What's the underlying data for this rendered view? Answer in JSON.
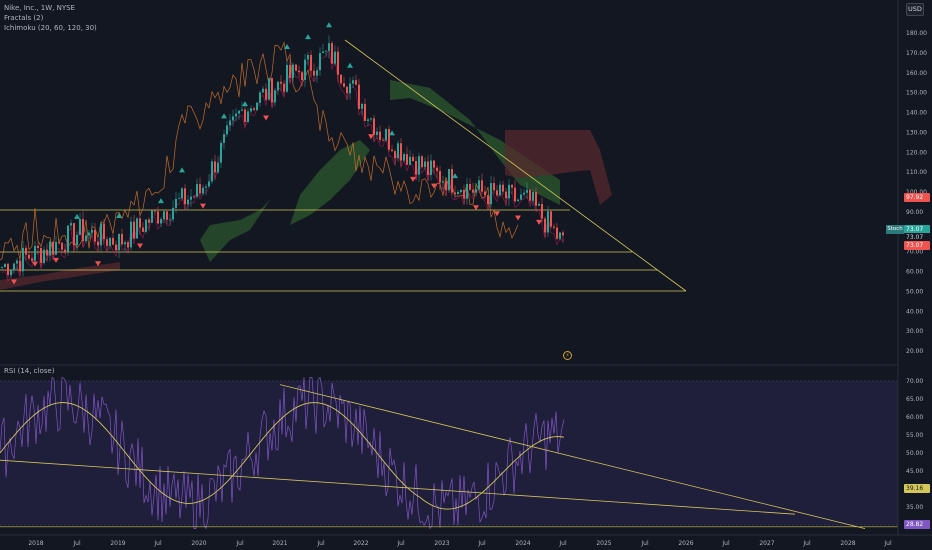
{
  "legend": {
    "symbol": "Nike, Inc., 1W, NYSE",
    "fractals": "Fractals (2)",
    "ichimoku": "Ichimoku (20, 60, 120, 30)"
  },
  "rsi_legend": "RSI (14, close)",
  "currency": "USD",
  "price_axis_ticks": [
    "180.00",
    "170.00",
    "160.00",
    "150.00",
    "140.00",
    "130.00",
    "120.00",
    "110.00",
    "100.00",
    "90.00",
    "80.00",
    "70.00",
    "60.00",
    "50.00",
    "40.00",
    "30.00",
    "20.00"
  ],
  "rsi_axis_ticks": [
    "70.00",
    "65.00",
    "60.00",
    "55.00",
    "50.00",
    "45.00",
    "40.00",
    "35.00",
    "30.00"
  ],
  "time_axis_labels": [
    "2018",
    "Jul",
    "2019",
    "Jul",
    "2020",
    "Jul",
    "2021",
    "Jul",
    "2022",
    "Jul",
    "2023",
    "Jul",
    "2024",
    "Jul",
    "2025",
    "Jul",
    "2026",
    "Jul",
    "2027",
    "Jul",
    "2028",
    "Jul"
  ],
  "price_labels": {
    "upper_red": "97.92",
    "lower_teal": "73.07",
    "mid_value": "73.07",
    "lower_red": "73.07",
    "tag_name": "Stoch"
  },
  "rsi_labels": {
    "rsi_ma": "39.16",
    "rsi_value": "28.82"
  },
  "colors": {
    "background": "#131722",
    "rsi_band": "#2a2450",
    "trendline": "#d4c75a",
    "rsi_line": "#7e57c2",
    "rsi_ma": "#d4c75a",
    "up_candle": "#26a69a",
    "down_candle": "#ef5350",
    "cloud_green": "#2e5a2e",
    "cloud_red": "#5a2a2e",
    "lagging_line": "#e07a2a"
  },
  "chart_data": {
    "type": "line",
    "title": "Nike, Inc., 1W, NYSE",
    "ylim": [
      15,
      190
    ],
    "rsi_ylim": [
      28,
      72
    ],
    "x": [
      "2018",
      "Jul",
      "2019",
      "Jul",
      "2020",
      "Jul",
      "2021",
      "Jul",
      "2022",
      "Jul",
      "2023",
      "Jul",
      "2024",
      "Jul"
    ],
    "series": [
      {
        "name": "",
        "values": [
          62,
          70,
          80,
          75,
          90,
          100,
          140,
          155,
          170,
          130,
          110,
          100,
          95,
          73
        ]
      }
    ]
  }
}
